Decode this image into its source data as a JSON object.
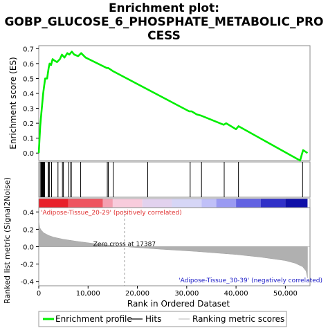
{
  "chart_data": {
    "type": "line",
    "title_lines": [
      "Enrichment plot:",
      "GOBP_GLUCOSE_6_PHOSPHATE_METABOLIC_PRO",
      "CESS"
    ],
    "top_panel": {
      "ylabel": "Enrichment score (ES)",
      "ylim": [
        -0.05,
        0.72
      ],
      "yticks": [
        0.0,
        0.1,
        0.2,
        0.3,
        0.4,
        0.5,
        0.6,
        0.7
      ],
      "ytick_labels": [
        "0.0",
        "0.1",
        "0.2",
        "0.3",
        "0.4",
        "0.5",
        "0.6",
        "0.7"
      ],
      "series": [
        {
          "name": "Enrichment profile",
          "color": "#00ee00",
          "x": [
            0,
            300,
            500,
            700,
            900,
            1100,
            1300,
            1700,
            2000,
            2200,
            2500,
            2800,
            3200,
            3700,
            4300,
            4700,
            5200,
            5800,
            6200,
            6700,
            7200,
            8000,
            8600,
            9500,
            13800,
            14100,
            15000,
            30500,
            31000,
            32000,
            33000,
            37500,
            38000,
            40000,
            40500,
            53000,
            53600,
            54500
          ],
          "y": [
            0.0,
            0.18,
            0.26,
            0.33,
            0.4,
            0.45,
            0.5,
            0.5,
            0.57,
            0.6,
            0.59,
            0.63,
            0.62,
            0.61,
            0.63,
            0.66,
            0.64,
            0.67,
            0.66,
            0.68,
            0.66,
            0.65,
            0.67,
            0.64,
            0.57,
            0.57,
            0.55,
            0.28,
            0.28,
            0.26,
            0.25,
            0.19,
            0.2,
            0.16,
            0.18,
            -0.05,
            0.02,
            0.0
          ]
        }
      ]
    },
    "hits": [
      300,
      500,
      600,
      700,
      800,
      900,
      1000,
      1100,
      1200,
      1900,
      2000,
      2200,
      2600,
      3900,
      4800,
      5000,
      6100,
      6500,
      6600,
      8500,
      13900,
      14100,
      15100,
      22100,
      30700,
      33000,
      37600,
      40500,
      53500
    ],
    "ranking_bar_colors": [
      "#e8202a",
      "#ee5560",
      "#f4a0b0",
      "#f8ccdc",
      "#e2d2ee",
      "#d6d6f6",
      "#c0c0f8",
      "#9a9af2",
      "#6262e2",
      "#3030c8",
      "#1010a8"
    ],
    "ranking_bar_stops": [
      0,
      6000,
      13000,
      15000,
      21000,
      27000,
      33000,
      36000,
      40000,
      45000,
      50000,
      54500
    ],
    "bottom_panel": {
      "ylabel": "Ranked list metric (Signal2Noise)",
      "ylim": [
        -0.45,
        0.45
      ],
      "yticks": [
        0.4,
        0.2,
        0.0,
        -0.2,
        -0.4
      ],
      "ytick_labels": [
        "0.4",
        "0.2",
        "0.0",
        "-0.2",
        "-0.4"
      ],
      "metric_x": [
        0,
        200,
        500,
        1000,
        2000,
        3000,
        5000,
        8000,
        12000,
        17387,
        25000,
        32000,
        40000,
        45000,
        50000,
        52000,
        53500,
        54200,
        54500
      ],
      "metric_y": [
        0.3,
        0.22,
        0.19,
        0.16,
        0.13,
        0.11,
        0.085,
        0.06,
        0.03,
        0.0,
        -0.03,
        -0.055,
        -0.09,
        -0.12,
        -0.16,
        -0.19,
        -0.23,
        -0.28,
        -0.36
      ],
      "zero_cross_label": "Zero cross at 17387",
      "zero_cross_x": 17387,
      "pos_label": "'Adipose-Tissue_20-29' (positively correlated)",
      "neg_label": "'Adipose-Tissue_30-39' (negatively correlated)"
    },
    "xlabel": "Rank in Ordered Dataset",
    "xlim": [
      0,
      55000
    ],
    "xticks": [
      0,
      10000,
      20000,
      30000,
      40000,
      50000
    ],
    "xtick_labels": [
      "0",
      "10,000",
      "20,000",
      "30,000",
      "40,000",
      "50,000"
    ],
    "legend": {
      "placement": "bottom",
      "items": [
        {
          "label": "Enrichment profile",
          "color": "#00ee00"
        },
        {
          "label": "Hits",
          "color": "#000000"
        },
        {
          "label": "Ranking metric scores",
          "color": "#c0c0c0"
        }
      ]
    },
    "grid": false
  }
}
